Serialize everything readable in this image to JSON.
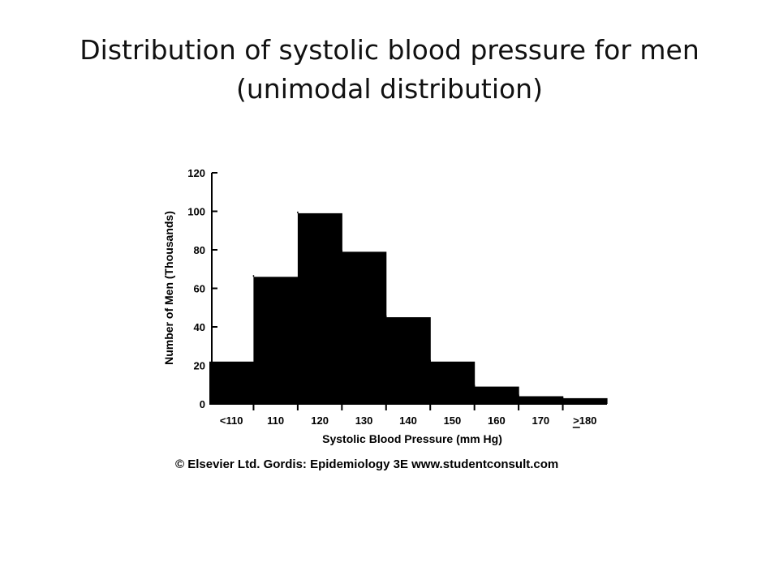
{
  "slide": {
    "title_line1": "Distribution of systolic blood pressure for men",
    "title_line2": "(unimodal distribution)"
  },
  "chart_data": {
    "type": "bar",
    "title": "",
    "xlabel": "Systolic Blood Pressure (mm Hg)",
    "ylabel": "Number of Men (Thousands)",
    "categories": [
      "<110",
      "110",
      "120",
      "130",
      "140",
      "150",
      "160",
      "170",
      ">180"
    ],
    "values": [
      22,
      66,
      99,
      79,
      45,
      22,
      9,
      4,
      3
    ],
    "ylim": [
      0,
      120
    ],
    "yticks": [
      0,
      20,
      40,
      60,
      80,
      100,
      120
    ],
    "grid": false,
    "legend": "none",
    "bar_color": "#000000",
    "credit": "© Elsevier Ltd. Gordis: Epidemiology 3E www.studentconsult.com"
  }
}
